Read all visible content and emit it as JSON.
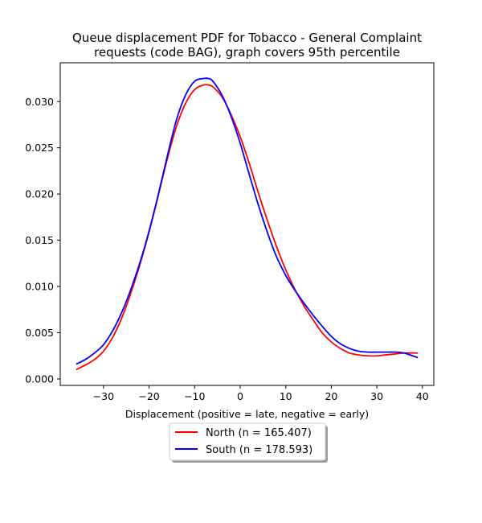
{
  "chart_data": {
    "type": "line",
    "title_lines": [
      "Queue displacement PDF for Tobacco - General Complaint",
      "requests (code BAG), graph covers 95th percentile"
    ],
    "xlabel": "Displacement (positive = late, negative = early)",
    "ylabel": "",
    "xlim": [
      -39.5,
      42.5
    ],
    "ylim": [
      -0.0007,
      0.0342
    ],
    "x_ticks": [
      -30,
      -20,
      -10,
      0,
      10,
      20,
      30,
      40
    ],
    "x_tick_labels": [
      "−30",
      "−20",
      "−10",
      "0",
      "10",
      "20",
      "30",
      "40"
    ],
    "y_ticks": [
      0.0,
      0.005,
      0.01,
      0.015,
      0.02,
      0.025,
      0.03
    ],
    "y_tick_labels": [
      "0.000",
      "0.005",
      "0.010",
      "0.015",
      "0.020",
      "0.025",
      "0.030"
    ],
    "grid": false,
    "legend_position": "below-center",
    "series": [
      {
        "name": "North (n = 165.407)",
        "color": "#ff0000",
        "points": [
          [
            -36,
            0.001
          ],
          [
            -34,
            0.0015
          ],
          [
            -32,
            0.0021
          ],
          [
            -30,
            0.003
          ],
          [
            -28,
            0.0045
          ],
          [
            -26,
            0.0066
          ],
          [
            -24,
            0.0093
          ],
          [
            -22,
            0.0124
          ],
          [
            -20,
            0.0159
          ],
          [
            -18,
            0.0198
          ],
          [
            -16,
            0.0238
          ],
          [
            -14,
            0.0273
          ],
          [
            -12,
            0.0298
          ],
          [
            -10,
            0.0313
          ],
          [
            -8,
            0.0318
          ],
          [
            -7,
            0.0318
          ],
          [
            -6,
            0.0316
          ],
          [
            -4,
            0.0305
          ],
          [
            -2,
            0.0286
          ],
          [
            0,
            0.0262
          ],
          [
            2,
            0.0233
          ],
          [
            4,
            0.0201
          ],
          [
            6,
            0.0171
          ],
          [
            8,
            0.0143
          ],
          [
            10,
            0.0118
          ],
          [
            12,
            0.0097
          ],
          [
            14,
            0.0079
          ],
          [
            16,
            0.0064
          ],
          [
            18,
            0.005
          ],
          [
            20,
            0.004
          ],
          [
            22,
            0.0033
          ],
          [
            24,
            0.0028
          ],
          [
            26,
            0.0026
          ],
          [
            28,
            0.0025
          ],
          [
            30,
            0.0025
          ],
          [
            32,
            0.0026
          ],
          [
            34,
            0.0027
          ],
          [
            36,
            0.0028
          ],
          [
            39,
            0.0028
          ]
        ]
      },
      {
        "name": "South (n = 178.593)",
        "color": "#0000ff",
        "points": [
          [
            -36,
            0.0016
          ],
          [
            -34,
            0.0021
          ],
          [
            -32,
            0.0028
          ],
          [
            -30,
            0.0037
          ],
          [
            -28,
            0.0052
          ],
          [
            -26,
            0.0072
          ],
          [
            -24,
            0.0097
          ],
          [
            -22,
            0.0126
          ],
          [
            -20,
            0.016
          ],
          [
            -18,
            0.0199
          ],
          [
            -16,
            0.0241
          ],
          [
            -14,
            0.028
          ],
          [
            -12,
            0.0307
          ],
          [
            -10,
            0.0322
          ],
          [
            -8,
            0.0325
          ],
          [
            -7,
            0.0325
          ],
          [
            -6,
            0.0322
          ],
          [
            -4,
            0.0307
          ],
          [
            -2,
            0.0284
          ],
          [
            0,
            0.0255
          ],
          [
            2,
            0.0221
          ],
          [
            4,
            0.0188
          ],
          [
            6,
            0.0158
          ],
          [
            8,
            0.0132
          ],
          [
            10,
            0.0112
          ],
          [
            12,
            0.0096
          ],
          [
            14,
            0.0082
          ],
          [
            16,
            0.0069
          ],
          [
            18,
            0.0057
          ],
          [
            20,
            0.0046
          ],
          [
            22,
            0.0038
          ],
          [
            24,
            0.0033
          ],
          [
            26,
            0.003
          ],
          [
            28,
            0.0029
          ],
          [
            30,
            0.0029
          ],
          [
            32,
            0.0029
          ],
          [
            34,
            0.0029
          ],
          [
            36,
            0.0028
          ],
          [
            39,
            0.0023
          ]
        ]
      }
    ]
  }
}
